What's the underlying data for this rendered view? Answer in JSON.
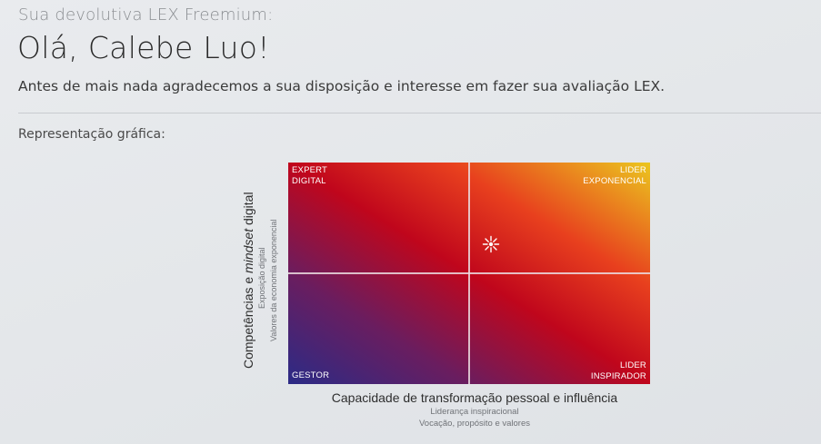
{
  "header": {
    "eyebrow": "Sua devolutiva LEX Freemium:",
    "greeting": "Olá, Calebe Luo!",
    "intro": "Antes de mais nada agradecemos a sua disposição e interesse em fazer sua avaliação LEX."
  },
  "section": {
    "label": "Representação gráfica:"
  },
  "matrix": {
    "quadrants": {
      "top_left": "EXPERT\nDIGITAL",
      "top_right": "LIDER\nEXPONENCIAL",
      "bottom_left": "GESTOR",
      "bottom_right": "LIDER\nINSPIRADOR"
    },
    "y_axis": {
      "title_before": "Competências e ",
      "title_italic": "mindset",
      "title_after": " digital",
      "sub1": "Exposição digital",
      "sub2": "Valores da economia exponencial"
    },
    "x_axis": {
      "title": "Capacidade de transformação pessoal e influência",
      "sub1": "Liderança inspiracional",
      "sub2": "Vocação, propósito e valores"
    },
    "marker_icon": "sparkle-marker-icon",
    "colors": {
      "low": "#2b2b86",
      "mid": "#c0061c",
      "high": "#ebc61f",
      "divider_lines": "#ebdce1"
    }
  },
  "chart_data": {
    "type": "scatter",
    "title": "",
    "xlabel": "Capacidade de transformação pessoal e influência",
    "ylabel": "Competências e mindset digital",
    "xlim": [
      0,
      1
    ],
    "ylim": [
      0,
      1
    ],
    "quadrant_split": {
      "x": 0.5,
      "y": 0.5
    },
    "points": [
      {
        "x": 0.56,
        "y": 0.63
      }
    ]
  }
}
